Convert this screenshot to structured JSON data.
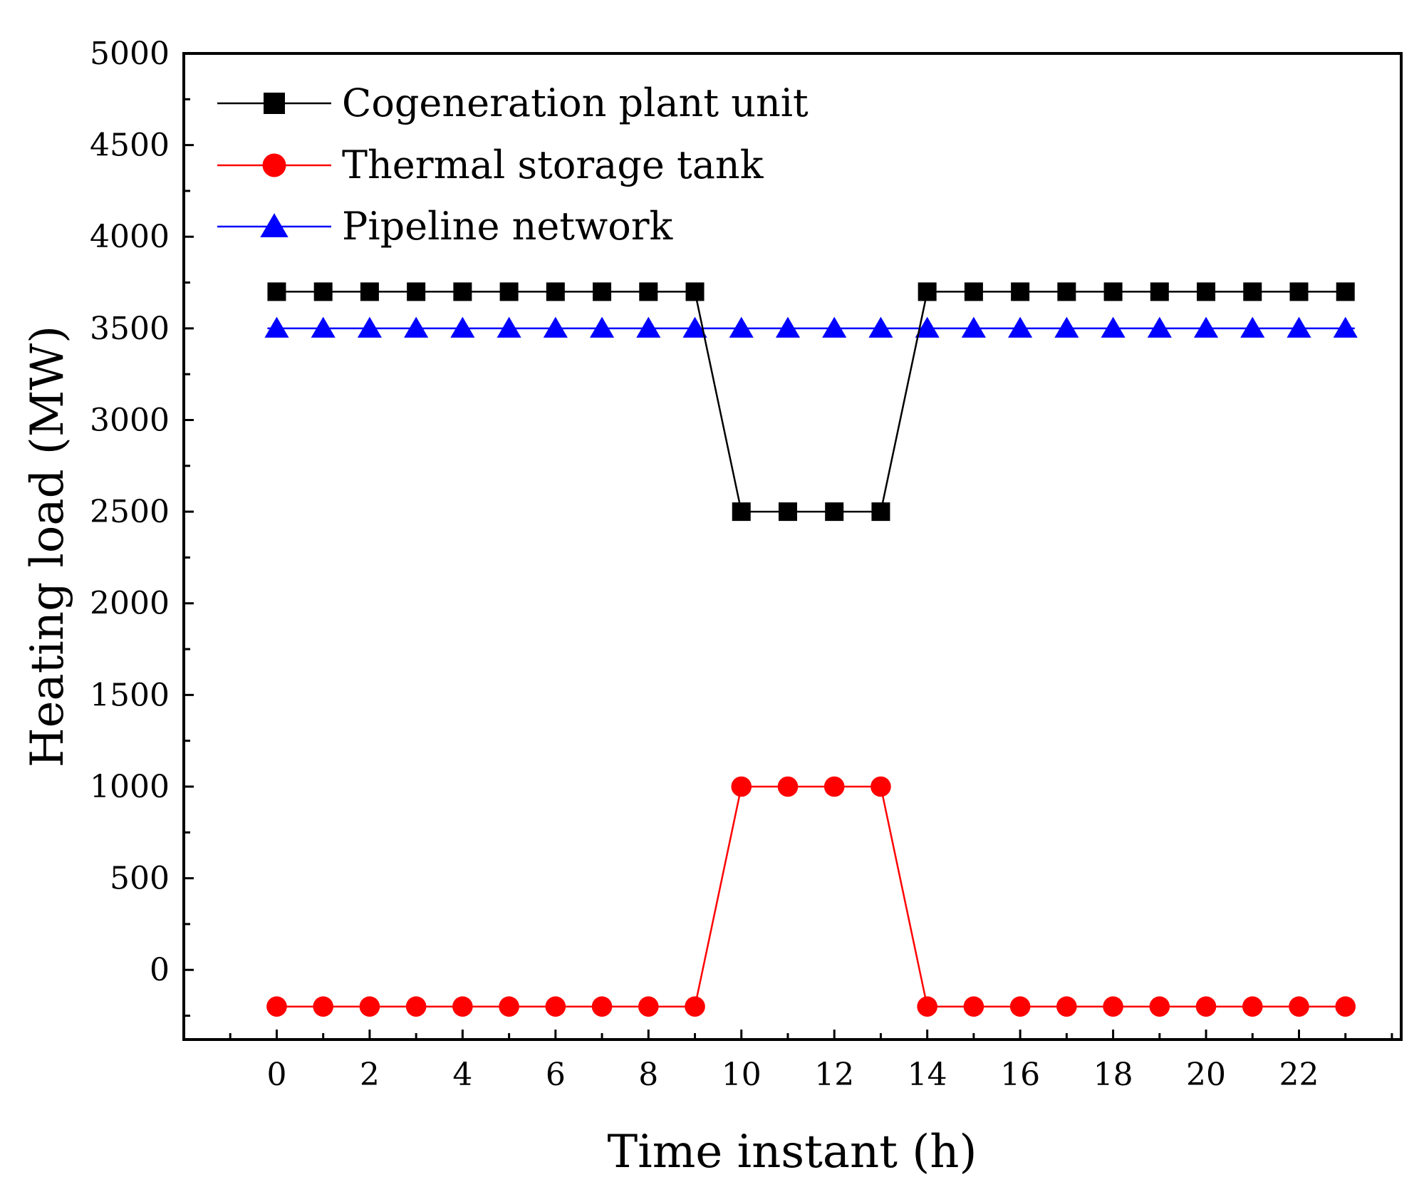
{
  "chart_data": {
    "type": "line",
    "title": "",
    "xlabel": "Time instant (h)",
    "ylabel": "Heating load (MW)",
    "xlim": [
      -2,
      24.2
    ],
    "ylim": [
      -380,
      5000
    ],
    "x_ticks_major": [
      0,
      2,
      4,
      6,
      8,
      10,
      12,
      14,
      16,
      18,
      20,
      22
    ],
    "y_ticks_major": [
      0,
      500,
      1000,
      1500,
      2000,
      2500,
      3000,
      3500,
      4000,
      4500,
      5000
    ],
    "x": [
      0,
      1,
      2,
      3,
      4,
      5,
      6,
      7,
      8,
      9,
      10,
      11,
      12,
      13,
      14,
      15,
      16,
      17,
      18,
      19,
      20,
      21,
      22,
      23
    ],
    "legend_position": "top-left",
    "series": [
      {
        "name": "Cogeneration plant unit",
        "marker": "square",
        "color": "#000000",
        "values": [
          3700,
          3700,
          3700,
          3700,
          3700,
          3700,
          3700,
          3700,
          3700,
          3700,
          2500,
          2500,
          2500,
          2500,
          3700,
          3700,
          3700,
          3700,
          3700,
          3700,
          3700,
          3700,
          3700,
          3700
        ]
      },
      {
        "name": "Thermal storage tank",
        "marker": "circle",
        "color": "#ff0000",
        "values": [
          -200,
          -200,
          -200,
          -200,
          -200,
          -200,
          -200,
          -200,
          -200,
          -200,
          1000,
          1000,
          1000,
          1000,
          -200,
          -200,
          -200,
          -200,
          -200,
          -200,
          -200,
          -200,
          -200,
          -200
        ]
      },
      {
        "name": "Pipeline network",
        "marker": "triangle",
        "color": "#0000ff",
        "values": [
          3500,
          3500,
          3500,
          3500,
          3500,
          3500,
          3500,
          3500,
          3500,
          3500,
          3500,
          3500,
          3500,
          3500,
          3500,
          3500,
          3500,
          3500,
          3500,
          3500,
          3500,
          3500,
          3500,
          3500
        ]
      }
    ]
  }
}
